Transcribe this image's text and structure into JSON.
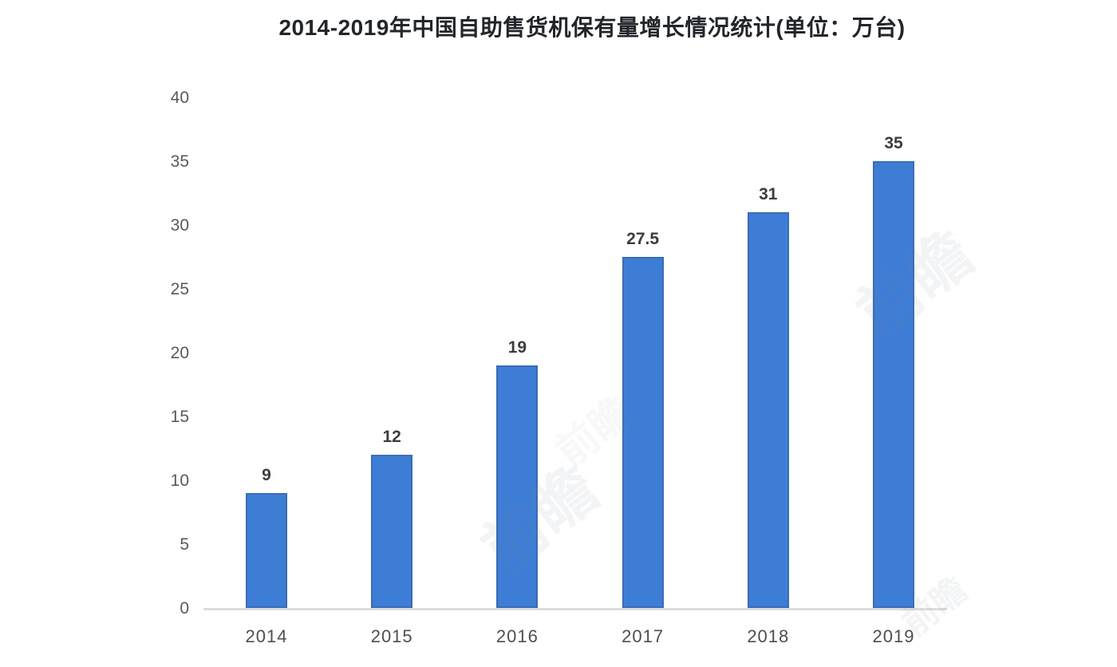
{
  "title": "2014-2019年中国自助售货机保有量增长情况统计(单位：万台)",
  "watermark": {
    "text": "前瞻"
  },
  "colors": {
    "bar": "#3e7dd6",
    "bar_border": "#32507877",
    "axis_line": "#dcdcdc",
    "title_text": "#22262b",
    "tick_text": "#595959",
    "data_label_text": "#3c3c3c"
  },
  "chart_data": {
    "type": "bar",
    "title": "2014-2019年中国自助售货机保有量增长情况统计(单位：万台)",
    "unit": "万台",
    "categories": [
      "2014",
      "2015",
      "2016",
      "2017",
      "2018",
      "2019"
    ],
    "values": [
      9,
      12,
      19,
      27.5,
      31,
      35
    ],
    "data_labels": [
      "9",
      "12",
      "19",
      "27.5",
      "31",
      "35"
    ],
    "xlabel": "",
    "ylabel": "",
    "ylim": [
      0,
      40
    ],
    "yticks": [
      0,
      5,
      10,
      15,
      20,
      25,
      30,
      35,
      40
    ],
    "grid": false,
    "legend_position": "none",
    "bar_color": "#3e7dd6",
    "background": "#ffffff"
  }
}
